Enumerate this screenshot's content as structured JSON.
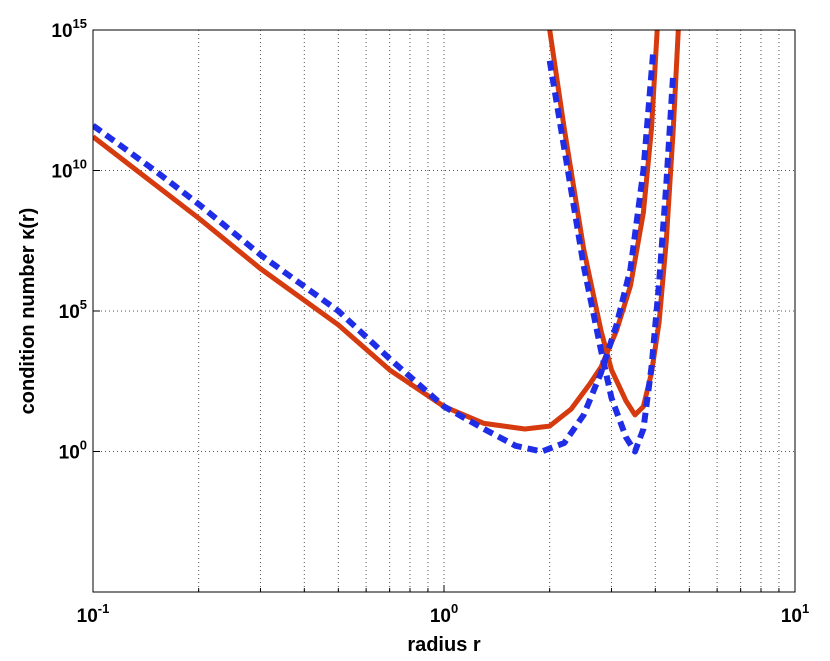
{
  "chart_data": {
    "type": "line",
    "xlabel": "radius r",
    "ylabel": "condition number κ(r)",
    "xscale": "log",
    "yscale": "log",
    "grid": true,
    "xlim": [
      0.1,
      10
    ],
    "ylim": [
      1e-05,
      1000000000000000.0
    ],
    "xticks": [
      {
        "value": 0.1,
        "label": "10^-1"
      },
      {
        "value": 1,
        "label": "10^0"
      },
      {
        "value": 10,
        "label": "10^1"
      }
    ],
    "xminorticks": [
      0.2,
      0.3,
      0.4,
      0.5,
      0.6,
      0.7,
      0.8,
      0.9,
      2,
      3,
      4,
      5,
      6,
      7,
      8,
      9
    ],
    "yticks": [
      {
        "value": 1,
        "label": "10^0"
      },
      {
        "value": 100000,
        "label": "10^5"
      },
      {
        "value": 10000000000,
        "label": "10^10"
      },
      {
        "value": 1000000000000000,
        "label": "10^15"
      }
    ],
    "series": [
      {
        "color": "#d63a0f",
        "style": "solid",
        "x": [
          0.1,
          0.15,
          0.2,
          0.3,
          0.5,
          0.7,
          1,
          1.3,
          1.7,
          2,
          2.3,
          2.6,
          2.8,
          3.1,
          3.4,
          3.7,
          3.9,
          4.05,
          null,
          2,
          2.2,
          2.5,
          2.8,
          3.0,
          3.3,
          3.5,
          3.7,
          3.9,
          4.1,
          4.3,
          4.5,
          4.65
        ],
        "values": [
          160000000000.0,
          3200000000.0,
          200000000.0,
          3200000.0,
          32000,
          800,
          40,
          10,
          6.3,
          8,
          32,
          250,
          1000,
          20000,
          800000,
          320000000.0,
          320000000000.0,
          1000000000000000.0,
          null,
          1000000000000000.0,
          320000000000.0,
          16000000.0,
          20000,
          800,
          63,
          20,
          40,
          630,
          40000,
          32000000.0,
          320000000000.0,
          1000000000000000.0
        ]
      },
      {
        "color": "#1f2ee6",
        "style": "dashed",
        "x": [
          0.1,
          0.15,
          0.2,
          0.3,
          0.5,
          0.7,
          1,
          1.3,
          1.6,
          1.9,
          2.2,
          2.5,
          2.8,
          3.1,
          3.4,
          3.7,
          3.95,
          null,
          2,
          2.2,
          2.5,
          2.8,
          3.0,
          3.3,
          3.5,
          3.7,
          3.9,
          4.1,
          4.3,
          4.5
        ],
        "values": [
          400000000000.0,
          10000000000.0,
          630000000.0,
          10000000.0,
          100000,
          2000,
          40,
          6.3,
          1.6,
          1,
          2,
          20,
          630,
          32000,
          3200000.0,
          10000000000.0,
          200000000000000.0,
          null,
          80000000000000.0,
          63000000000.0,
          4000000.0,
          4000,
          80,
          3.2,
          1,
          6.3,
          1000,
          1000000,
          3200000000.0,
          32000000000000.0
        ]
      }
    ]
  }
}
